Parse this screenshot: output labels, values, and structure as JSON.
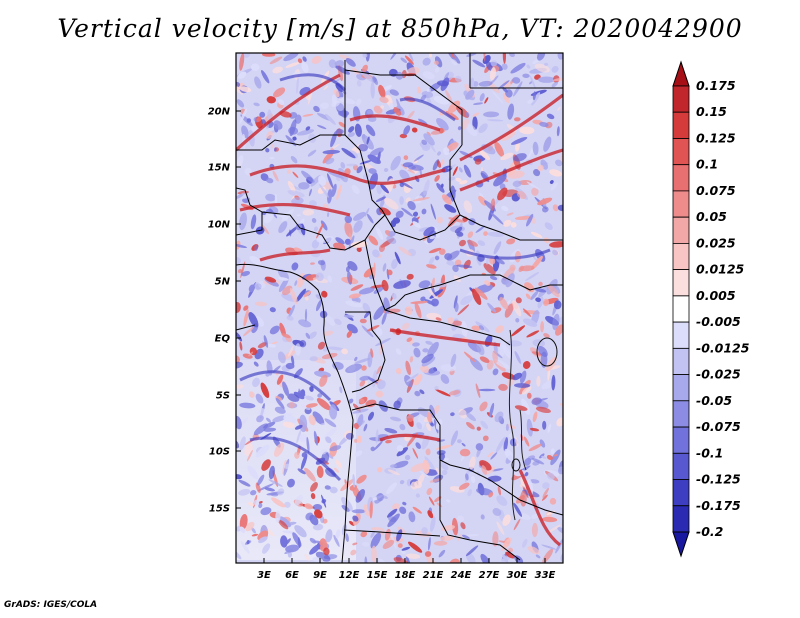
{
  "title": "Vertical velocity [m/s] at 850hPa, VT: 2020042900",
  "credit": "GrADS: IGES/COLA",
  "lat_labels": [
    "20N",
    "15N",
    "10N",
    "5N",
    "EQ",
    "5S",
    "10S",
    "15S"
  ],
  "lon_labels": [
    "3E",
    "6E",
    "9E",
    "12E",
    "15E",
    "18E",
    "21E",
    "24E",
    "27E",
    "30E",
    "33E"
  ],
  "colorbar": {
    "labels": [
      "0.175",
      "0.15",
      "0.125",
      "0.1",
      "0.075",
      "0.05",
      "0.025",
      "0.0125",
      "0.005",
      "-0.005",
      "-0.0125",
      "-0.025",
      "-0.05",
      "-0.075",
      "-0.1",
      "-0.125",
      "-0.175",
      "-0.2"
    ],
    "colors": [
      "#a50f15",
      "#c0262b",
      "#d63b3b",
      "#e05454",
      "#e87070",
      "#ee8c8c",
      "#f3a8a8",
      "#f8c4c4",
      "#fbdede",
      "#ffffff",
      "#dcdcfb",
      "#c2c2f3",
      "#a8a8ec",
      "#8c8ce4",
      "#7272dc",
      "#5858d0",
      "#3e3ec2",
      "#2a2ab2",
      "#1818a0"
    ]
  },
  "colors": {
    "positive": "#d42a2a",
    "negative": "#4a4ad8",
    "background_pos": "#f1c4c4",
    "background_neg": "#c8c8f2"
  }
}
